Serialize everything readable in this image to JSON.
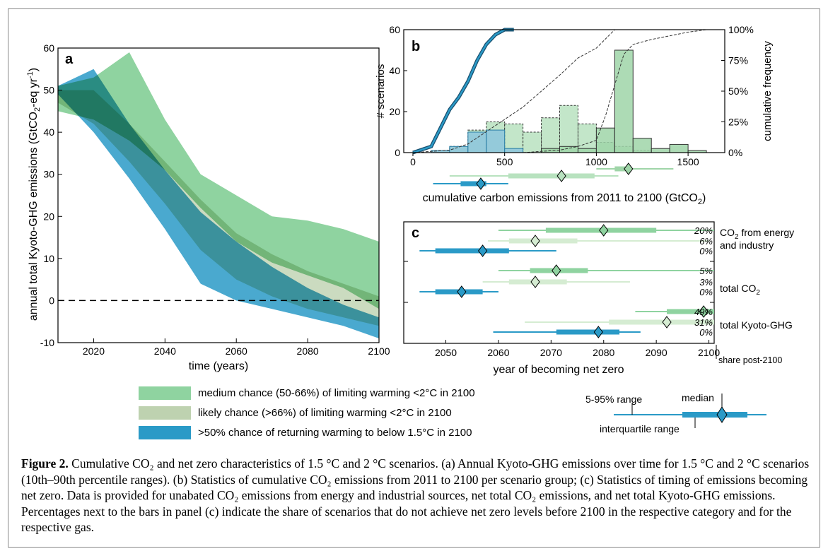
{
  "colors": {
    "medium": "#8fd3a0",
    "likely": "#bed2b0",
    "below15": "#2a9ac7",
    "overlap_medium_likely": "#6fad7c",
    "overlap_below15": "#1f7d8c",
    "overlap_all": "#1e6f67",
    "b_blue": "#8cc4dd",
    "b_green": "#b8e2bf",
    "b_green_dark": "#9fd5a8"
  },
  "panel_a": {
    "label": "a",
    "ylabel": "annual total Kyoto-GHG emissions (GtCO",
    "ylabel_sub": "2",
    "ylabel_tail": "-eq yr",
    "ylabel_sup": "-1",
    "ylabel_end": ")",
    "xlabel": "time (years)",
    "xticks": [
      "2020",
      "2040",
      "2060",
      "2080",
      "2100"
    ],
    "yticks": [
      "-10",
      "0",
      "10",
      "20",
      "30",
      "40",
      "50",
      "60"
    ]
  },
  "legend": [
    {
      "label": "medium chance (50-66%) of limiting warming <2°C in 2100",
      "color_key": "medium"
    },
    {
      "label": "likely chance (>66%) of limiting warming <2°C in 2100",
      "color_key": "likely"
    },
    {
      "label": ">50% chance of returning warming to below 1.5°C in 2100",
      "color_key": "below15"
    }
  ],
  "panel_b": {
    "label": "b",
    "ylabel_left": "# scenarios",
    "ylabel_right": "cumulative frequency",
    "xticks": [
      "0",
      "500",
      "1000",
      "1500"
    ],
    "yticks_left": [
      "0",
      "20",
      "40",
      "60"
    ],
    "yticks_right": [
      "0%",
      "25%",
      "50%",
      "75%",
      "100%"
    ],
    "xlabel": "cumulative carbon emissions from 2011 to 2100 (GtCO",
    "xlabel_sub": "2",
    "xlabel_end": ")"
  },
  "panel_c": {
    "label": "c",
    "xticks": [
      "2050",
      "2060",
      "2070",
      "2080",
      "2090",
      "2100"
    ],
    "xlabel": "year of becoming net zero",
    "share_label": "share post-2100",
    "groups": [
      {
        "label_pre": "CO",
        "label_sub": "2",
        "label_post": " from energy",
        "label_line2": "and industry",
        "shares": [
          "20%",
          "6%",
          "0%"
        ]
      },
      {
        "label_pre": "total CO",
        "label_sub": "2",
        "label_post": "",
        "label_line2": "",
        "shares": [
          "5%",
          "3%",
          "0%"
        ]
      },
      {
        "label_pre": "total Kyoto-GHG",
        "label_sub": "",
        "label_post": "",
        "label_line2": "",
        "shares": [
          "49%",
          "31%",
          "0%"
        ]
      }
    ]
  },
  "key": {
    "range_label": "5-95% range",
    "median_label": "median",
    "iqr_label": "interquartile range"
  },
  "caption": {
    "fig": "Figure 2.",
    "text": " Cumulative CO₂ and net zero characteristics of 1.5 °C and 2 °C scenarios. (a) Annual Kyoto-GHG emissions over time for 1.5 °C and 2 °C scenarios (10th–90th percentile ranges). (b) Statistics of cumulative CO₂ emissions from 2011 to 2100 per scenario group; (c) Statistics of timing of emissions becoming net zero. Data is provided for unabated CO₂ emissions from energy and industrial sources, net total CO₂ emissions, and net total Kyoto-GHG emissions. Percentages next to the bars in panel (c) indicate the share of scenarios that do not achieve net zero levels before 2100 in the respective category and for the respective gas."
  },
  "chart_data": [
    {
      "type": "area",
      "panel": "a",
      "xlim": [
        2010,
        2100
      ],
      "ylim": [
        -10,
        60
      ],
      "reference_line_y": 0,
      "series": [
        {
          "name": "medium chance (50-66%) of limiting warming <2°C in 2100",
          "x": [
            2010,
            2020,
            2030,
            2040,
            2050,
            2060,
            2070,
            2080,
            2090,
            2100
          ],
          "upper": [
            51,
            53,
            59,
            43,
            30,
            25,
            20,
            19,
            17,
            14
          ],
          "lower": [
            45,
            43,
            38,
            31,
            22,
            14,
            9,
            6,
            3,
            -2
          ]
        },
        {
          "name": "likely chance (>66%) of limiting warming <2°C in 2100",
          "x": [
            2010,
            2020,
            2030,
            2040,
            2050,
            2060,
            2070,
            2080,
            2090,
            2100
          ],
          "upper": [
            50,
            50,
            42,
            33,
            24,
            16,
            11,
            7,
            4,
            1
          ],
          "lower": [
            47,
            42,
            33,
            23,
            12,
            5,
            1,
            -2,
            -4,
            -6
          ]
        },
        {
          "name": ">50% chance of returning warming to below 1.5°C in 2100",
          "x": [
            2010,
            2020,
            2030,
            2040,
            2050,
            2060,
            2070,
            2080,
            2090,
            2100
          ],
          "upper": [
            51,
            55,
            42,
            31,
            21,
            14,
            8,
            3,
            -1,
            -4
          ],
          "lower": [
            49,
            40,
            29,
            17,
            4,
            0,
            -2,
            -4,
            -6,
            -9
          ]
        }
      ]
    },
    {
      "type": "bar",
      "panel": "b",
      "xlim": [
        -50,
        1700
      ],
      "ylim": [
        0,
        60
      ],
      "bin_width": 100,
      "series": [
        {
          "name": ">50% chance of returning warming to below 1.5°C in 2100",
          "bin_starts": [
            100,
            200,
            300,
            400,
            500
          ],
          "values": [
            1,
            3,
            10,
            11,
            2
          ]
        },
        {
          "name": "likely chance (>66%) of limiting warming <2°C in 2100",
          "bin_starts": [
            100,
            200,
            300,
            400,
            500,
            600,
            700,
            800,
            900,
            1000,
            1100,
            1200
          ],
          "values": [
            1,
            3,
            11,
            15,
            14,
            10,
            17,
            23,
            14,
            5,
            3,
            1
          ]
        },
        {
          "name": "medium chance (50-66%) of limiting warming <2°C in 2100",
          "bin_starts": [
            700,
            800,
            900,
            1000,
            1100,
            1200,
            1300,
            1400,
            1500
          ],
          "values": [
            2,
            3,
            2,
            12,
            50,
            7,
            2,
            4,
            1
          ]
        }
      ],
      "cumulative": [
        {
          "name": ">50% chance of returning warming to below 1.5°C in 2100",
          "x": [
            0,
            100,
            150,
            200,
            250,
            300,
            350,
            400,
            450,
            500,
            550
          ],
          "y": [
            0,
            5,
            20,
            35,
            45,
            58,
            75,
            88,
            96,
            100,
            100
          ]
        },
        {
          "name": "likely chance (>66%) of limiting warming <2°C in 2100",
          "x": [
            0,
            200,
            300,
            400,
            500,
            600,
            700,
            800,
            900,
            1000,
            1100,
            1200
          ],
          "y": [
            0,
            2,
            7,
            17,
            27,
            37,
            50,
            63,
            77,
            85,
            100,
            100
          ]
        },
        {
          "name": "medium chance (50-66%) of limiting warming <2°C in 2100",
          "x": [
            600,
            800,
            900,
            1000,
            1050,
            1100,
            1150,
            1200,
            1300,
            1400,
            1500,
            1600,
            1700
          ],
          "y": [
            0,
            2,
            5,
            10,
            30,
            55,
            80,
            88,
            92,
            95,
            98,
            100,
            100
          ]
        }
      ],
      "summary": [
        {
          "name": "medium chance (50-66%) of limiting warming <2°C in 2100",
          "p5": 1000,
          "q25": 1100,
          "median": 1175,
          "q75": 1190,
          "p95": 1420
        },
        {
          "name": "likely chance (>66%) of limiting warming <2°C in 2100",
          "p5": 200,
          "q25": 520,
          "median": 810,
          "q75": 990,
          "p95": 1120
        },
        {
          "name": ">50% chance of returning warming to below 1.5°C in 2100",
          "p5": 110,
          "q25": 260,
          "median": 370,
          "q75": 400,
          "p95": 520
        }
      ]
    },
    {
      "type": "box",
      "panel": "c",
      "xlim": [
        2042,
        2101
      ],
      "groups": [
        {
          "name": "CO2 from energy and industry",
          "rows": [
            {
              "series": "medium chance (50-66%) of limiting warming <2°C in 2100",
              "p5": 2060,
              "q25": 2069,
              "median": 2080,
              "q75": 2090,
              "p95": 2101,
              "share_post_2100": "20%"
            },
            {
              "series": "likely chance (>66%) of limiting warming <2°C in 2100",
              "p5": 2058,
              "q25": 2062,
              "median": 2067,
              "q75": 2075,
              "p95": 2100,
              "share_post_2100": "6%"
            },
            {
              "series": ">50% chance of returning warming to below 1.5°C in 2100",
              "p5": 2045,
              "q25": 2048,
              "median": 2057,
              "q75": 2062,
              "p95": 2071,
              "share_post_2100": "0%"
            }
          ]
        },
        {
          "name": "total CO2",
          "rows": [
            {
              "series": "medium chance (50-66%) of limiting warming <2°C in 2100",
              "p5": 2060,
              "q25": 2066,
              "median": 2071,
              "q75": 2077,
              "p95": 2101,
              "share_post_2100": "5%"
            },
            {
              "series": "likely chance (>66%) of limiting warming <2°C in 2100",
              "p5": 2057,
              "q25": 2062,
              "median": 2067,
              "q75": 2073,
              "p95": 2085,
              "share_post_2100": "3%"
            },
            {
              "series": ">50% chance of returning warming to below 1.5°C in 2100",
              "p5": 2045,
              "q25": 2048,
              "median": 2053,
              "q75": 2057,
              "p95": 2060,
              "share_post_2100": "0%"
            }
          ]
        },
        {
          "name": "total Kyoto-GHG",
          "rows": [
            {
              "series": "medium chance (50-66%) of limiting warming <2°C in 2100",
              "p5": 2086,
              "q25": 2092,
              "median": 2099,
              "q75": 2101,
              "p95": 2101,
              "share_post_2100": "49%"
            },
            {
              "series": "likely chance (>66%) of limiting warming <2°C in 2100",
              "p5": 2065,
              "q25": 2081,
              "median": 2092,
              "q75": 2101,
              "p95": 2101,
              "share_post_2100": "31%"
            },
            {
              "series": ">50% chance of returning warming to below 1.5°C in 2100",
              "p5": 2059,
              "q25": 2071,
              "median": 2079,
              "q75": 2083,
              "p95": 2087,
              "share_post_2100": "0%"
            }
          ]
        }
      ]
    }
  ]
}
